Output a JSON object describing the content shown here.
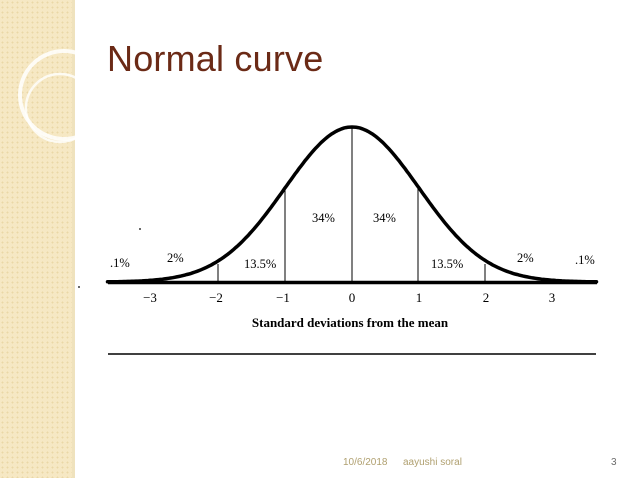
{
  "slide": {
    "title": "Normal curve",
    "footer": {
      "date": "10/6/2018",
      "author": "aayushi soral",
      "page": "3"
    }
  },
  "diagram": {
    "tick_labels": [
      "−3",
      "−2",
      "−1",
      "0",
      "1",
      "2",
      "3"
    ],
    "region_labels": [
      ".1%",
      "2%",
      "13.5%",
      "34%",
      "34%",
      "13.5%",
      "2%",
      ".1%"
    ],
    "axis_caption": "Standard deviations from the mean"
  },
  "colors": {
    "title": "#6b2a16",
    "band": "#f6e8c4",
    "curve": "#000000"
  }
}
